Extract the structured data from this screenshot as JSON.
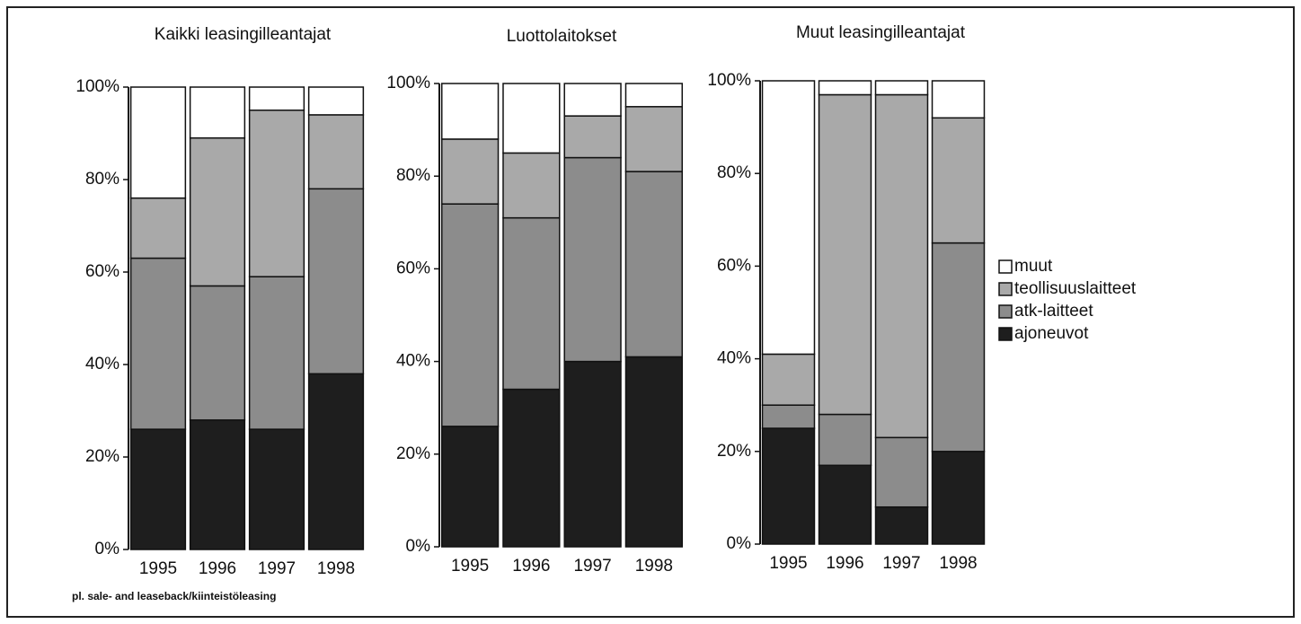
{
  "chart_data": [
    {
      "type": "stacked_bar",
      "title": "Kaikki leasingilleantajat",
      "categories": [
        "1995",
        "1996",
        "1997",
        "1998"
      ],
      "series": [
        {
          "name": "ajoneuvot",
          "color": "#1e1e1e",
          "values": [
            26,
            28,
            26,
            38
          ]
        },
        {
          "name": "atk-laitteet",
          "color": "#8c8c8c",
          "values": [
            37,
            29,
            33,
            40
          ]
        },
        {
          "name": "teollisuuslaitteet",
          "color": "#a9a9a9",
          "values": [
            13,
            32,
            36,
            16
          ]
        },
        {
          "name": "muut",
          "color": "#ffffff",
          "values": [
            24,
            11,
            5,
            6
          ]
        }
      ],
      "ylim": [
        0,
        100
      ],
      "yticks": [
        {
          "value": 0,
          "label": "0%"
        },
        {
          "value": 20,
          "label": "20%"
        },
        {
          "value": 40,
          "label": "40%"
        },
        {
          "value": 60,
          "label": "60%"
        },
        {
          "value": 80,
          "label": "80%"
        },
        {
          "value": 100,
          "label": "100%"
        }
      ],
      "note": "pl. sale- and leaseback/kiinteistöleasing"
    },
    {
      "type": "stacked_bar",
      "title": "Luottolaitokset",
      "categories": [
        "1995",
        "1996",
        "1997",
        "1998"
      ],
      "series": [
        {
          "name": "ajoneuvot",
          "color": "#1e1e1e",
          "values": [
            26,
            34,
            40,
            41
          ]
        },
        {
          "name": "atk-laitteet",
          "color": "#8c8c8c",
          "values": [
            48,
            37,
            44,
            40
          ]
        },
        {
          "name": "teollisuuslaitteet",
          "color": "#a9a9a9",
          "values": [
            14,
            14,
            9,
            14
          ]
        },
        {
          "name": "muut",
          "color": "#ffffff",
          "values": [
            12,
            15,
            7,
            5
          ]
        }
      ],
      "ylim": [
        0,
        100
      ],
      "yticks": [
        {
          "value": 0,
          "label": "0%"
        },
        {
          "value": 20,
          "label": "20%"
        },
        {
          "value": 40,
          "label": "40%"
        },
        {
          "value": 60,
          "label": "60%"
        },
        {
          "value": 80,
          "label": "80%"
        },
        {
          "value": 100,
          "label": "100%"
        }
      ]
    },
    {
      "type": "stacked_bar",
      "title": "Muut leasingilleantajat",
      "categories": [
        "1995",
        "1996",
        "1997",
        "1998"
      ],
      "series": [
        {
          "name": "ajoneuvot",
          "color": "#1e1e1e",
          "values": [
            25,
            17,
            8,
            20
          ]
        },
        {
          "name": "atk-laitteet",
          "color": "#8c8c8c",
          "values": [
            5,
            11,
            15,
            45
          ]
        },
        {
          "name": "teollisuuslaitteet",
          "color": "#a9a9a9",
          "values": [
            11,
            69,
            74,
            27
          ]
        },
        {
          "name": "muut",
          "color": "#ffffff",
          "values": [
            59,
            3,
            3,
            8
          ]
        }
      ],
      "ylim": [
        0,
        100
      ],
      "yticks": [
        {
          "value": 0,
          "label": "0%"
        },
        {
          "value": 20,
          "label": "20%"
        },
        {
          "value": 40,
          "label": "40%"
        },
        {
          "value": 60,
          "label": "60%"
        },
        {
          "value": 80,
          "label": "80%"
        },
        {
          "value": 100,
          "label": "100%"
        }
      ],
      "legend": "right"
    }
  ]
}
